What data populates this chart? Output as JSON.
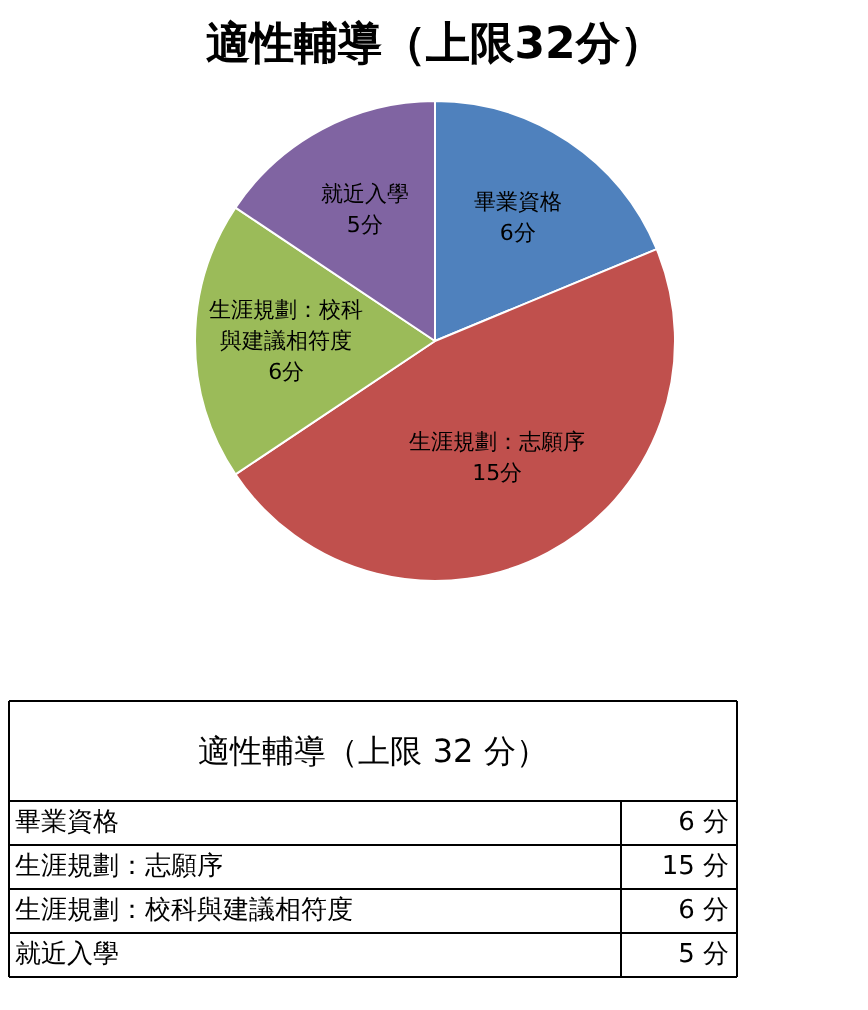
{
  "chart_data": {
    "type": "pie",
    "title": "適性輔導（上限32分）",
    "categories": [
      "畢業資格",
      "生涯規劃：志願序",
      "生涯規劃：校科與建議相符度",
      "就近入學"
    ],
    "values": [
      6,
      15,
      6,
      5
    ],
    "colors": [
      "#4f81bd",
      "#c0504d",
      "#9bbb59",
      "#8064a2"
    ],
    "value_labels": [
      "6分",
      "15分",
      "6分",
      "5分"
    ],
    "annotations": [
      "適性輔導（上限 32 分）",
      "6 分",
      "15 分",
      "6 分",
      "5 分"
    ]
  }
}
